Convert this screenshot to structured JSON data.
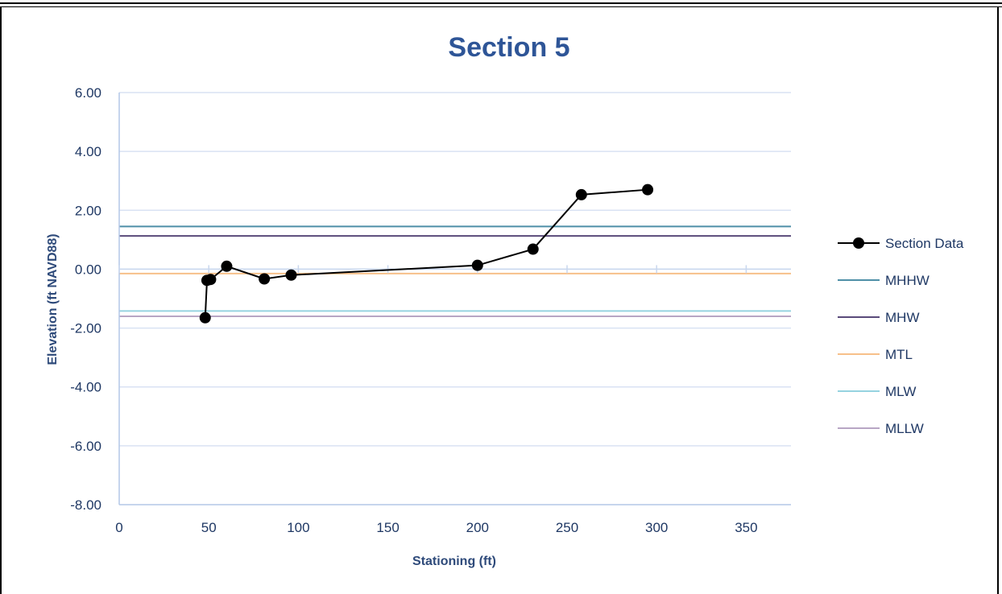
{
  "chart_data": {
    "type": "line",
    "title": "Section 5",
    "xlabel": "Stationing (ft)",
    "ylabel": "Elevation (ft NAVD88)",
    "xlim": [
      0,
      375
    ],
    "ylim": [
      -8,
      6
    ],
    "xticks": [
      0,
      50,
      100,
      150,
      200,
      250,
      300,
      350
    ],
    "yticks": [
      6,
      4,
      2,
      0,
      -2,
      -4,
      -6,
      -8
    ],
    "ytick_labels": [
      "6.00",
      "4.00",
      "2.00",
      "0.00",
      "-2.00",
      "-4.00",
      "-6.00",
      "-8.00"
    ],
    "grid": true,
    "legend_position": "right",
    "series": [
      {
        "name": "Section Data",
        "color": "#000000",
        "marker": "circle",
        "x": [
          48,
          49,
          51,
          60,
          81,
          96,
          200,
          231,
          258,
          295
        ],
        "y": [
          -1.65,
          -0.38,
          -0.35,
          0.1,
          -0.33,
          -0.2,
          0.13,
          0.68,
          2.53,
          2.7
        ]
      }
    ],
    "reference_lines": [
      {
        "name": "MHHW",
        "y": 1.45,
        "color": "#4e8fa7"
      },
      {
        "name": "MHW",
        "y": 1.13,
        "color": "#5a4a7a"
      },
      {
        "name": "MTL",
        "y": -0.15,
        "color": "#f7c08a"
      },
      {
        "name": "MLW",
        "y": -1.42,
        "color": "#96d3e0"
      },
      {
        "name": "MLLW",
        "y": -1.6,
        "color": "#b8a6c4"
      }
    ]
  }
}
